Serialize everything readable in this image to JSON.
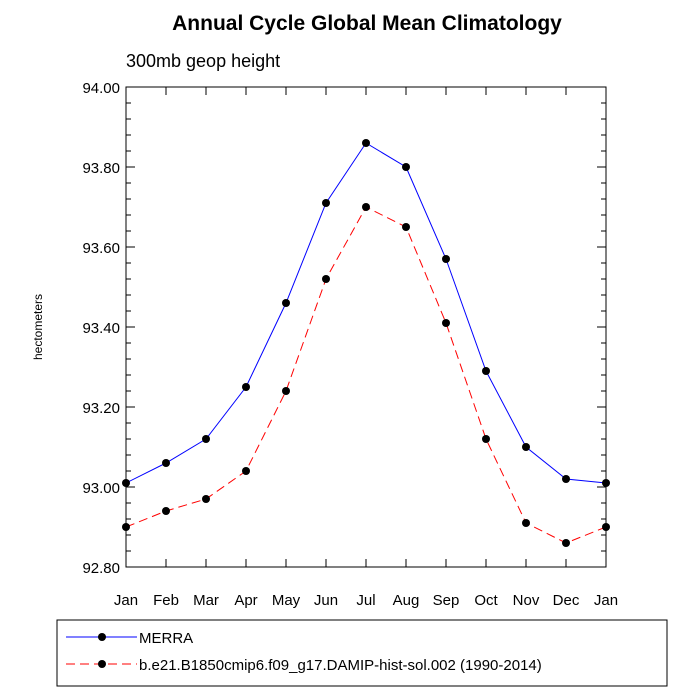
{
  "chart_data": {
    "type": "line",
    "title": "Annual Cycle Global Mean Climatology",
    "subtitle": "300mb geop height",
    "xlabel": "",
    "ylabel": "hectometers",
    "categories": [
      "Jan",
      "Feb",
      "Mar",
      "Apr",
      "May",
      "Jun",
      "Jul",
      "Aug",
      "Sep",
      "Oct",
      "Nov",
      "Dec",
      "Jan"
    ],
    "ylim": [
      92.8,
      94.0
    ],
    "yticks": [
      "92.80",
      "93.00",
      "93.20",
      "93.40",
      "93.60",
      "93.80",
      "94.00"
    ],
    "grid": false,
    "legend_position": "bottom",
    "series": [
      {
        "name": "MERRA",
        "color": "#0000ff",
        "dash": "solid",
        "values": [
          93.01,
          93.06,
          93.12,
          93.25,
          93.46,
          93.71,
          93.86,
          93.8,
          93.57,
          93.29,
          93.1,
          93.02,
          93.01
        ]
      },
      {
        "name": "b.e21.B1850cmip6.f09_g17.DAMIP-hist-sol.002 (1990-2014)",
        "color": "#ff0000",
        "dash": "dashed",
        "values": [
          92.9,
          92.94,
          92.97,
          93.04,
          93.24,
          93.52,
          93.7,
          93.65,
          93.41,
          93.12,
          92.91,
          92.86,
          92.9
        ]
      }
    ]
  }
}
